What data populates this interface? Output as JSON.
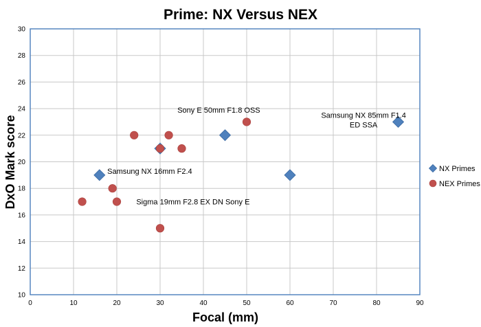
{
  "chart_data": {
    "type": "scatter",
    "title": "Prime: NX Versus NEX",
    "xlabel": "Focal (mm)",
    "ylabel": "DxO Mark score",
    "xlim": [
      0,
      90
    ],
    "ylim": [
      10,
      30
    ],
    "xticks": [
      0,
      10,
      20,
      30,
      40,
      50,
      60,
      70,
      80,
      90
    ],
    "yticks": [
      10,
      12,
      14,
      16,
      18,
      20,
      22,
      24,
      26,
      28,
      30
    ],
    "grid": true,
    "legend_position": "right",
    "series": [
      {
        "name": "NX Primes",
        "marker": "diamond",
        "color": "#4f81bd",
        "points": [
          {
            "x": 16,
            "y": 19
          },
          {
            "x": 30,
            "y": 21
          },
          {
            "x": 45,
            "y": 22
          },
          {
            "x": 60,
            "y": 19
          },
          {
            "x": 85,
            "y": 23
          }
        ]
      },
      {
        "name": "NEX Primes",
        "marker": "circle",
        "color": "#c0504d",
        "points": [
          {
            "x": 12,
            "y": 17
          },
          {
            "x": 19,
            "y": 18
          },
          {
            "x": 20,
            "y": 17
          },
          {
            "x": 24,
            "y": 22
          },
          {
            "x": 30,
            "y": 21
          },
          {
            "x": 30,
            "y": 15
          },
          {
            "x": 32,
            "y": 22
          },
          {
            "x": 35,
            "y": 21
          },
          {
            "x": 50,
            "y": 23
          }
        ]
      }
    ],
    "annotations": [
      {
        "lines": [
          "Sony E 50mm F1.8 OSS"
        ],
        "x": 34,
        "y": 23.7,
        "anchor": "start"
      },
      {
        "lines": [
          "Samsung NX 85mm F1.4",
          "ED SSA"
        ],
        "x": 77,
        "y": 23.3,
        "anchor": "middle"
      },
      {
        "lines": [
          "Samsung NX 16mm F2.4"
        ],
        "x": 17.8,
        "y": 19.1,
        "anchor": "start"
      },
      {
        "lines": [
          "Sigma 19mm F2.8 EX DN Sony E"
        ],
        "x": 24.5,
        "y": 16.8,
        "anchor": "start"
      }
    ]
  }
}
